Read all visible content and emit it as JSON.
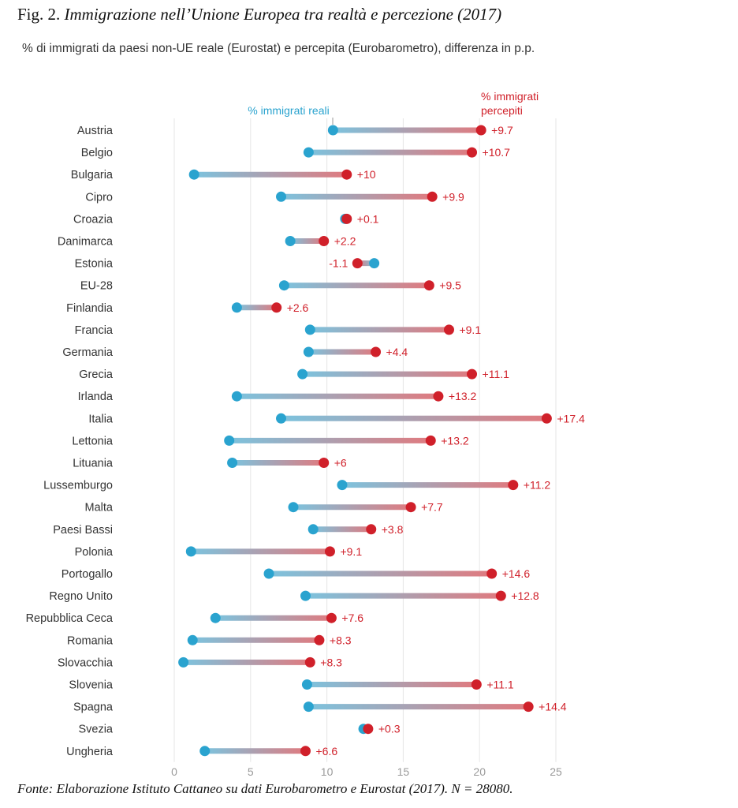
{
  "figure": {
    "number": "Fig. 2.",
    "title": "Immigrazione nell’Unione Europea tra realtà e percezione (2017)",
    "subtitle": "% di immigrati da paesi non-UE reale (Eurostat) e percepita (Eurobarometro), differenza in p.p.",
    "source": "Fonte: Elaborazione Istituto Cattaneo su dati Eurobarometro e Eurostat (2017). N = 28080."
  },
  "colors": {
    "real": "#2aa3cf",
    "perceived": "#d0202a",
    "grid": "#e6e6e6",
    "text": "#333333",
    "tick": "#9a9a9a"
  },
  "chart_data": {
    "type": "dumbbell",
    "xlim": [
      0,
      25
    ],
    "xticks": [
      0,
      5,
      10,
      15,
      20,
      25
    ],
    "grid": true,
    "legend_real": "% immigrati reali",
    "legend_perceived_line1": "% immigrati",
    "legend_perceived_line2": "percepiti",
    "rows": [
      {
        "country": "Austria",
        "real": 10.4,
        "perceived": 20.1,
        "diff": "+9.7"
      },
      {
        "country": "Belgio",
        "real": 8.8,
        "perceived": 19.5,
        "diff": "+10.7"
      },
      {
        "country": "Bulgaria",
        "real": 1.3,
        "perceived": 11.3,
        "diff": "+10"
      },
      {
        "country": "Cipro",
        "real": 7.0,
        "perceived": 16.9,
        "diff": "+9.9"
      },
      {
        "country": "Croazia",
        "real": 11.2,
        "perceived": 11.3,
        "diff": "+0.1"
      },
      {
        "country": "Danimarca",
        "real": 7.6,
        "perceived": 9.8,
        "diff": "+2.2"
      },
      {
        "country": "Estonia",
        "real": 13.1,
        "perceived": 12.0,
        "diff": "-1.1"
      },
      {
        "country": "EU-28",
        "real": 7.2,
        "perceived": 16.7,
        "diff": "+9.5"
      },
      {
        "country": "Finlandia",
        "real": 4.1,
        "perceived": 6.7,
        "diff": "+2.6"
      },
      {
        "country": "Francia",
        "real": 8.9,
        "perceived": 18.0,
        "diff": "+9.1"
      },
      {
        "country": "Germania",
        "real": 8.8,
        "perceived": 13.2,
        "diff": "+4.4"
      },
      {
        "country": "Grecia",
        "real": 8.4,
        "perceived": 19.5,
        "diff": "+11.1"
      },
      {
        "country": "Irlanda",
        "real": 4.1,
        "perceived": 17.3,
        "diff": "+13.2"
      },
      {
        "country": "Italia",
        "real": 7.0,
        "perceived": 24.4,
        "diff": "+17.4"
      },
      {
        "country": "Lettonia",
        "real": 3.6,
        "perceived": 16.8,
        "diff": "+13.2"
      },
      {
        "country": "Lituania",
        "real": 3.8,
        "perceived": 9.8,
        "diff": "+6"
      },
      {
        "country": "Lussemburgo",
        "real": 11.0,
        "perceived": 22.2,
        "diff": "+11.2"
      },
      {
        "country": "Malta",
        "real": 7.8,
        "perceived": 15.5,
        "diff": "+7.7"
      },
      {
        "country": "Paesi Bassi",
        "real": 9.1,
        "perceived": 12.9,
        "diff": "+3.8"
      },
      {
        "country": "Polonia",
        "real": 1.1,
        "perceived": 10.2,
        "diff": "+9.1"
      },
      {
        "country": "Portogallo",
        "real": 6.2,
        "perceived": 20.8,
        "diff": "+14.6"
      },
      {
        "country": "Regno Unito",
        "real": 8.6,
        "perceived": 21.4,
        "diff": "+12.8"
      },
      {
        "country": "Repubblica Ceca",
        "real": 2.7,
        "perceived": 10.3,
        "diff": "+7.6"
      },
      {
        "country": "Romania",
        "real": 1.2,
        "perceived": 9.5,
        "diff": "+8.3"
      },
      {
        "country": "Slovacchia",
        "real": 0.6,
        "perceived": 8.9,
        "diff": "+8.3"
      },
      {
        "country": "Slovenia",
        "real": 8.7,
        "perceived": 19.8,
        "diff": "+11.1"
      },
      {
        "country": "Spagna",
        "real": 8.8,
        "perceived": 23.2,
        "diff": "+14.4"
      },
      {
        "country": "Svezia",
        "real": 12.4,
        "perceived": 12.7,
        "diff": "+0.3"
      },
      {
        "country": "Ungheria",
        "real": 2.0,
        "perceived": 8.6,
        "diff": "+6.6"
      }
    ]
  }
}
